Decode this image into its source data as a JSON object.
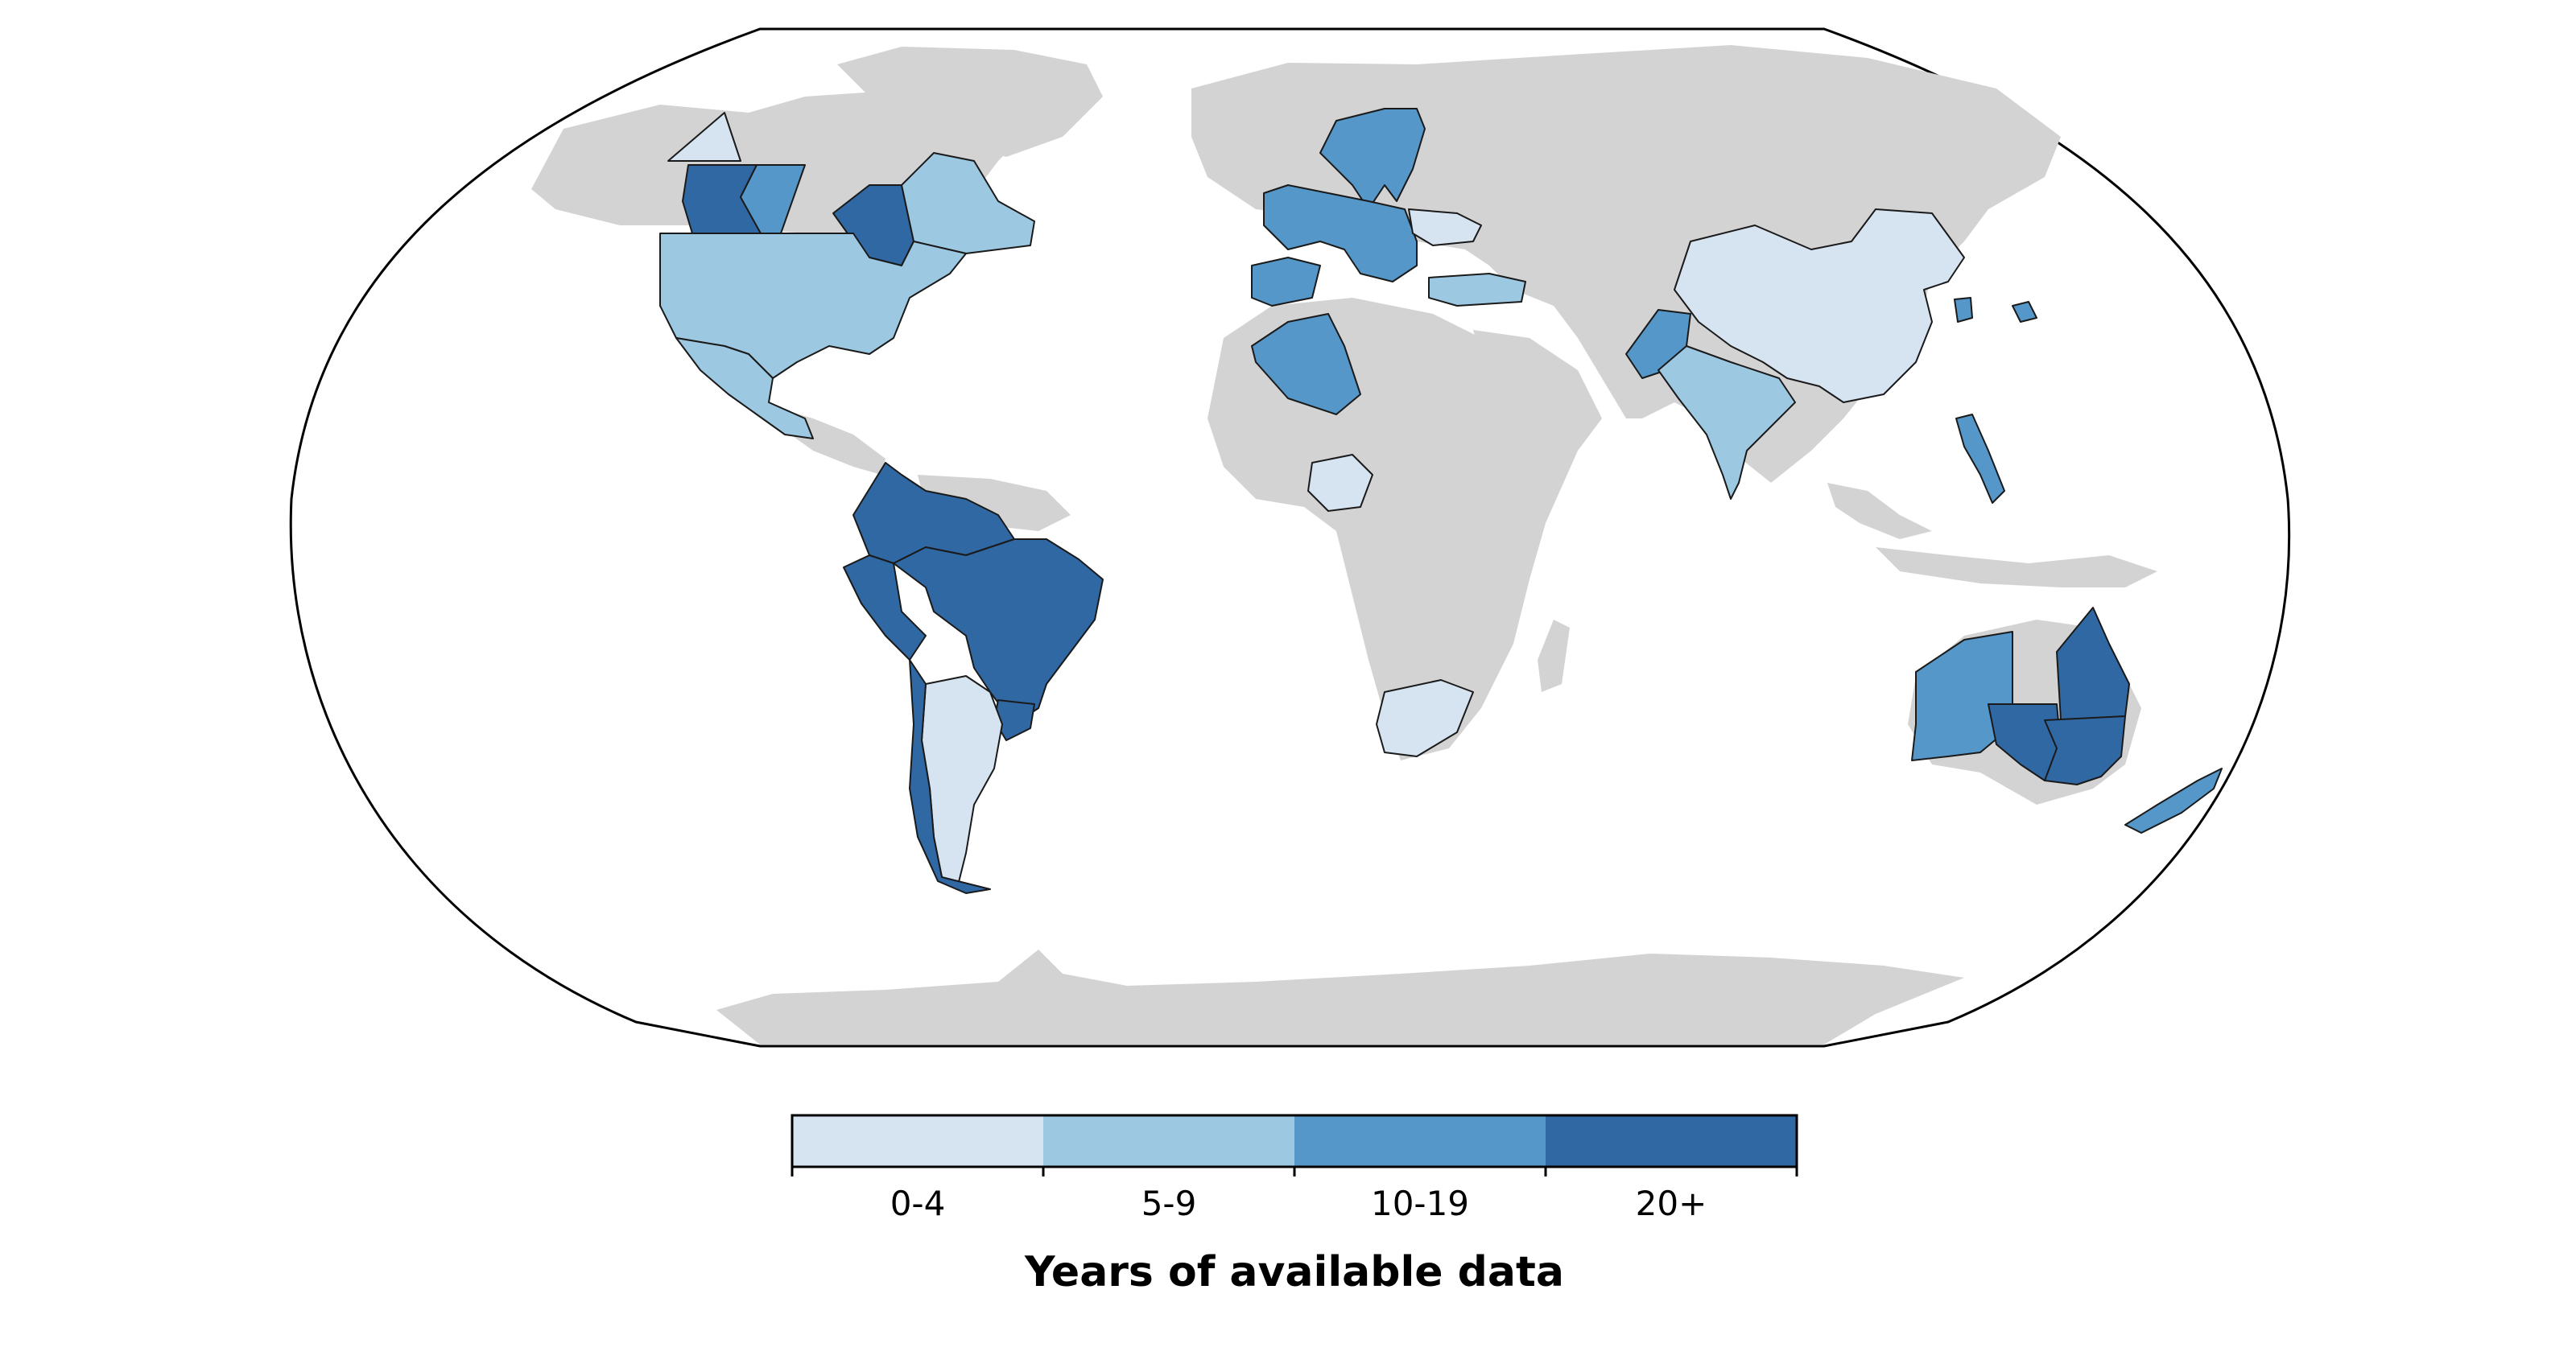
{
  "legend": {
    "title": "Years of available data",
    "bins": [
      {
        "label": "0-4",
        "color": "#d6e4f2"
      },
      {
        "label": "5-9",
        "color": "#9dc8e2"
      },
      {
        "label": "10-19",
        "color": "#5597c8"
      },
      {
        "label": "20+",
        "color": "#3068a4"
      }
    ]
  },
  "colors": {
    "land": "#d3d3d3",
    "ocean": "#ffffff",
    "border": "#1a1a1a"
  },
  "regions": [
    {
      "name": "Alaska",
      "bin": 0
    },
    {
      "name": "British Columbia",
      "bin": 3
    },
    {
      "name": "Alberta",
      "bin": 2
    },
    {
      "name": "Ontario",
      "bin": 3
    },
    {
      "name": "Quebec",
      "bin": 1
    },
    {
      "name": "United States",
      "bin": 1
    },
    {
      "name": "Mexico",
      "bin": 1
    },
    {
      "name": "Colombia",
      "bin": 3
    },
    {
      "name": "Venezuela",
      "bin": 3
    },
    {
      "name": "Peru",
      "bin": 3
    },
    {
      "name": "Brazil",
      "bin": 3
    },
    {
      "name": "Uruguay",
      "bin": 3
    },
    {
      "name": "Argentina",
      "bin": 0
    },
    {
      "name": "Chile",
      "bin": 3
    },
    {
      "name": "Scandinavia",
      "bin": 2
    },
    {
      "name": "Western Europe",
      "bin": 2
    },
    {
      "name": "Iberia",
      "bin": 2
    },
    {
      "name": "Eastern Europe",
      "bin": 0
    },
    {
      "name": "Turkey",
      "bin": 1
    },
    {
      "name": "Algeria",
      "bin": 2
    },
    {
      "name": "Nigeria",
      "bin": 0
    },
    {
      "name": "South Africa",
      "bin": 0
    },
    {
      "name": "Pakistan",
      "bin": 2
    },
    {
      "name": "India",
      "bin": 1
    },
    {
      "name": "China",
      "bin": 0
    },
    {
      "name": "South Korea",
      "bin": 2
    },
    {
      "name": "Japan",
      "bin": 2
    },
    {
      "name": "Philippines",
      "bin": 2
    },
    {
      "name": "Western Australia",
      "bin": 2
    },
    {
      "name": "South Australia",
      "bin": 3
    },
    {
      "name": "Queensland",
      "bin": 3
    },
    {
      "name": "New South Wales",
      "bin": 3
    },
    {
      "name": "New Zealand",
      "bin": 2
    }
  ]
}
